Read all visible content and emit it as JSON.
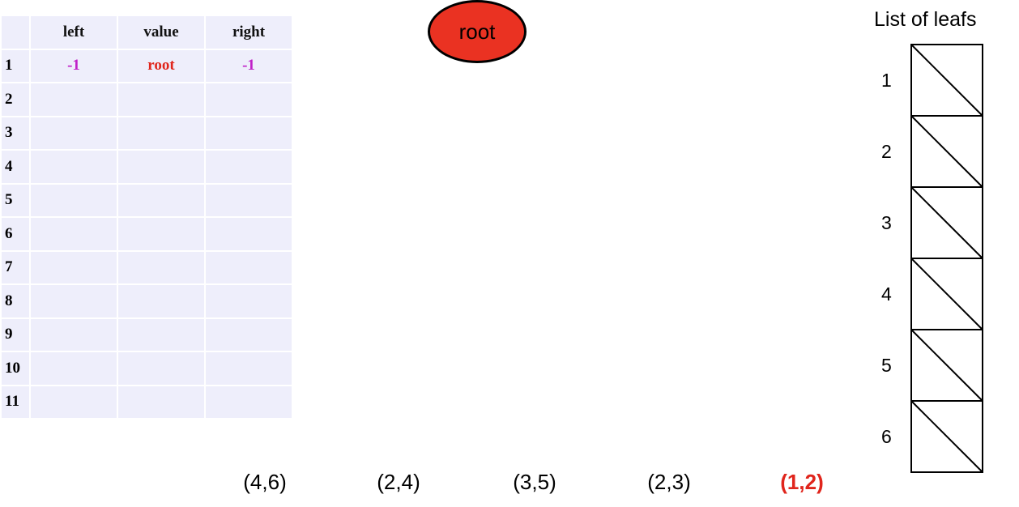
{
  "table": {
    "headers": {
      "left": "left",
      "value": "value",
      "right": "right"
    },
    "rows": [
      {
        "index": "1",
        "left": "-1",
        "value": "root",
        "right": "-1"
      },
      {
        "index": "2",
        "left": "",
        "value": "",
        "right": ""
      },
      {
        "index": "3",
        "left": "",
        "value": "",
        "right": ""
      },
      {
        "index": "4",
        "left": "",
        "value": "",
        "right": ""
      },
      {
        "index": "5",
        "left": "",
        "value": "",
        "right": ""
      },
      {
        "index": "6",
        "left": "",
        "value": "",
        "right": ""
      },
      {
        "index": "7",
        "left": "",
        "value": "",
        "right": ""
      },
      {
        "index": "8",
        "left": "",
        "value": "",
        "right": ""
      },
      {
        "index": "9",
        "left": "",
        "value": "",
        "right": ""
      },
      {
        "index": "10",
        "left": "",
        "value": "",
        "right": ""
      },
      {
        "index": "11",
        "left": "",
        "value": "",
        "right": ""
      }
    ]
  },
  "root_node": {
    "label": "root",
    "fill": "#ea3222"
  },
  "leaf_list": {
    "title": "List of leafs",
    "slots": [
      "1",
      "2",
      "3",
      "4",
      "5",
      "6"
    ]
  },
  "pairs": [
    {
      "label": "(4,6)",
      "active": false
    },
    {
      "label": "(2,4)",
      "active": false
    },
    {
      "label": "(3,5)",
      "active": false
    },
    {
      "label": "(2,3)",
      "active": false
    },
    {
      "label": "(1,2)",
      "active": true
    }
  ],
  "colors": {
    "pointer": "#c020c8",
    "value": "#e0251c",
    "table_bg": "#eeeefb",
    "active_pair": "#e0251c"
  }
}
